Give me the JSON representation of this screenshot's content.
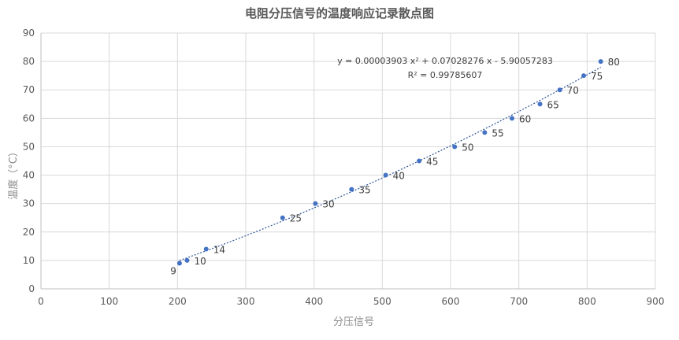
{
  "chart_data": {
    "type": "scatter",
    "title": "电阻分压信号的温度响应记录散点图",
    "xlabel": "分压信号",
    "ylabel": "温度（°C）",
    "xlim": [
      0,
      900
    ],
    "ylim": [
      0,
      90
    ],
    "x_ticks": [
      0,
      100,
      200,
      300,
      400,
      500,
      600,
      700,
      800,
      900
    ],
    "y_ticks": [
      0,
      10,
      20,
      30,
      40,
      50,
      60,
      70,
      80,
      90
    ],
    "grid": true,
    "legend": "none",
    "marker_color": "#4472c4",
    "trendline_color": "#2e5597",
    "points": [
      {
        "x": 203,
        "y": 9,
        "label": "9"
      },
      {
        "x": 214,
        "y": 10,
        "label": "10"
      },
      {
        "x": 242,
        "y": 14,
        "label": "14"
      },
      {
        "x": 354,
        "y": 25,
        "label": "25"
      },
      {
        "x": 402,
        "y": 30,
        "label": "30"
      },
      {
        "x": 455,
        "y": 35,
        "label": "35"
      },
      {
        "x": 505,
        "y": 40,
        "label": "40"
      },
      {
        "x": 554,
        "y": 45,
        "label": "45"
      },
      {
        "x": 606,
        "y": 50,
        "label": "50"
      },
      {
        "x": 650,
        "y": 55,
        "label": "55"
      },
      {
        "x": 690,
        "y": 60,
        "label": "60"
      },
      {
        "x": 731,
        "y": 65,
        "label": "65"
      },
      {
        "x": 760,
        "y": 70,
        "label": "70"
      },
      {
        "x": 795,
        "y": 75,
        "label": "75"
      },
      {
        "x": 820,
        "y": 80,
        "label": "80"
      }
    ],
    "trendline": {
      "type": "polynomial",
      "order": 2,
      "coefficients": {
        "a": 3.903e-05,
        "b": 0.07028276,
        "c": -5.90057283
      },
      "x_range": [
        203,
        820
      ],
      "equation_text": "y = 0.00003903 x² + 0.07028276 x - 5.90057283",
      "r2_text": "R² = 0.99785607"
    }
  }
}
